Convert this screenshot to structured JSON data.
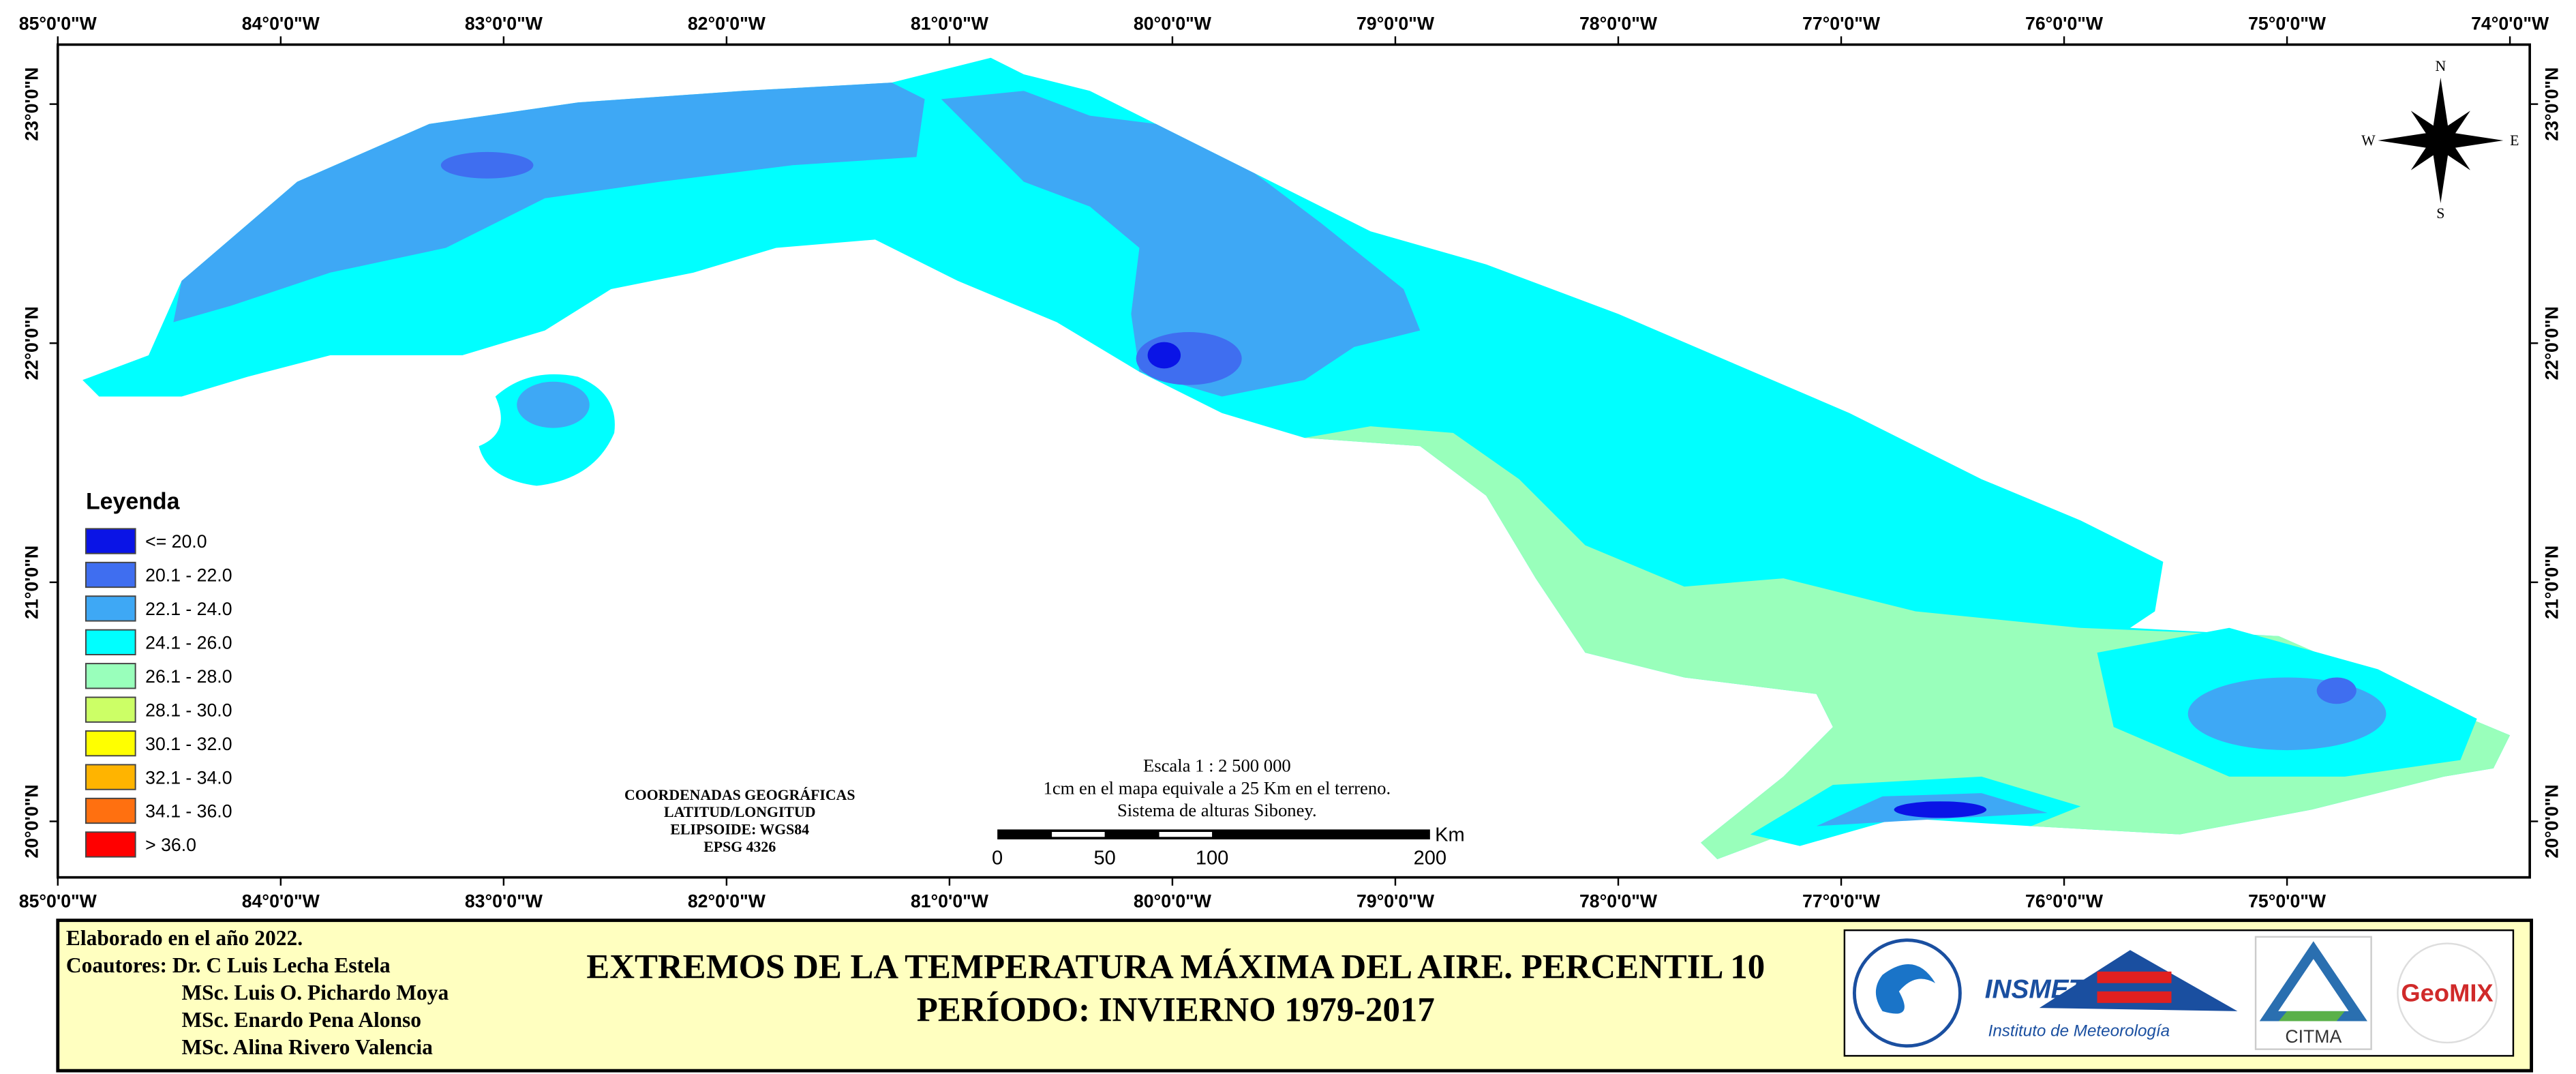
{
  "map": {
    "top_longitude_labels": [
      "85°0'0\"W",
      "84°0'0\"W",
      "83°0'0\"W",
      "82°0'0\"W",
      "81°0'0\"W",
      "80°0'0\"W",
      "79°0'0\"W",
      "78°0'0\"W",
      "77°0'0\"W",
      "76°0'0\"W",
      "75°0'0\"W",
      "74°0'0\"W"
    ],
    "bottom_longitude_labels": [
      "85°0'0\"W",
      "84°0'0\"W",
      "83°0'0\"W",
      "82°0'0\"W",
      "81°0'0\"W",
      "80°0'0\"W",
      "79°0'0\"W",
      "78°0'0\"W",
      "77°0'0\"W",
      "76°0'0\"W",
      "75°0'0\"W"
    ],
    "left_latitude_labels": [
      "23°0'0\"N",
      "22°0'0\"N",
      "21°0'0\"N",
      "20°0'0\"N"
    ],
    "right_latitude_labels": [
      "23°0'0\"N",
      "22°0'0\"N",
      "21°0'0\"N",
      "20°0'0\"N"
    ]
  },
  "compass": {
    "n": "N",
    "s": "S",
    "e": "E",
    "w": "W"
  },
  "legend": {
    "title": "Leyenda",
    "items": [
      {
        "label": "<= 20.0",
        "color": "#0a14e6"
      },
      {
        "label": "20.1 - 22.0",
        "color": "#3f6ef0"
      },
      {
        "label": "22.1 - 24.0",
        "color": "#3ea8f5"
      },
      {
        "label": "24.1 - 26.0",
        "color": "#00ffff"
      },
      {
        "label": "26.1 - 28.0",
        "color": "#99ffbb"
      },
      {
        "label": "28.1 - 30.0",
        "color": "#ccff66"
      },
      {
        "label": "30.1 - 32.0",
        "color": "#ffff00"
      },
      {
        "label": "32.1 - 34.0",
        "color": "#ffb400"
      },
      {
        "label": "34.1 - 36.0",
        "color": "#ff7010"
      },
      {
        "label": "> 36.0",
        "color": "#ff0000"
      }
    ]
  },
  "scale": {
    "lines": [
      "Escala 1 : 2 500 000",
      "1cm en el mapa equivale a 25 Km en el terreno.",
      "Sistema de alturas Siboney."
    ],
    "bar_labels": [
      "0",
      "50",
      "100",
      "200"
    ],
    "unit": "Km"
  },
  "coordinates": [
    "COORDENADAS GEOGRÁFICAS",
    "LATITUD/LONGITUD",
    "ELIPSOIDE: WGS84",
    "EPSG 4326"
  ],
  "footer": {
    "credits": [
      "Elaborado en el año 2022.",
      "Coautores: Dr. C Luis Lecha Estela",
      "MSc. Luis O. Pichardo Moya",
      "MSc. Enardo Pena Alonso",
      "MSc. Alina Rivero Valencia"
    ],
    "title_lines": [
      "EXTREMOS DE LA TEMPERATURA MÁXIMA DEL AIRE. PERCENTIL 10",
      "PERÍODO: INVIERNO 1979-2017"
    ],
    "logos": {
      "insmet": "INSMET",
      "insmet_subtitle": "Instituto de Meteorología",
      "citma": "CITMA",
      "geomix": "GeoMIX"
    }
  }
}
